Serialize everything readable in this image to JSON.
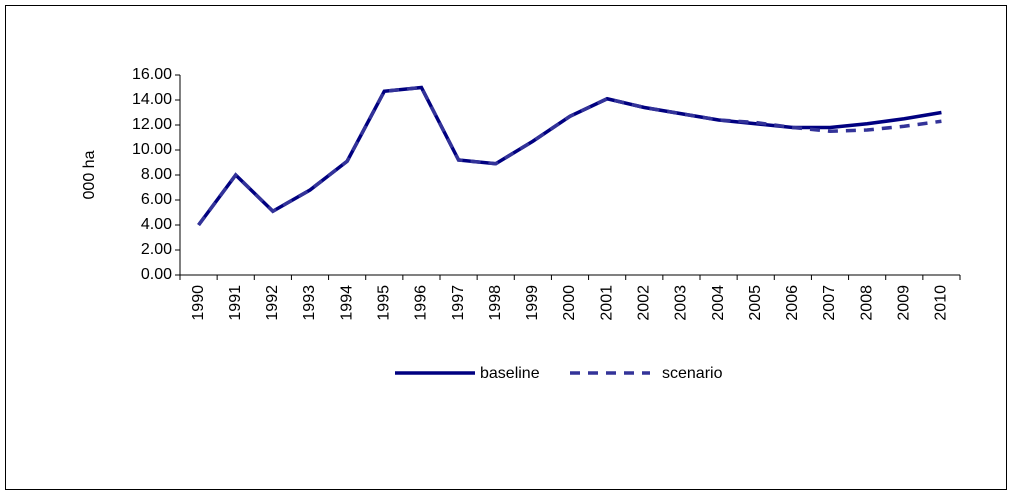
{
  "chart_data": {
    "type": "line",
    "y_label": "000 ha",
    "categories": [
      "1990",
      "1991",
      "1992",
      "1993",
      "1994",
      "1995",
      "1996",
      "1997",
      "1998",
      "1999",
      "2000",
      "2001",
      "2002",
      "2003",
      "2004",
      "2005",
      "2006",
      "2007",
      "2008",
      "2009",
      "2010"
    ],
    "series": [
      {
        "name": "baseline",
        "color": "#000080",
        "dash": false,
        "values": [
          4.0,
          8.0,
          5.1,
          6.8,
          9.1,
          14.7,
          15.0,
          9.2,
          8.9,
          10.7,
          12.7,
          14.1,
          13.4,
          12.9,
          12.4,
          12.1,
          11.8,
          11.8,
          12.1,
          12.5,
          13.0
        ]
      },
      {
        "name": "scenario",
        "color": "#333399",
        "dash": true,
        "values": [
          4.0,
          8.0,
          5.1,
          6.8,
          9.1,
          14.7,
          15.0,
          9.2,
          8.9,
          10.7,
          12.7,
          14.1,
          13.4,
          12.9,
          12.4,
          12.2,
          11.8,
          11.5,
          11.6,
          11.9,
          12.3
        ]
      }
    ],
    "ylim": [
      0,
      16
    ],
    "yticks": [
      {
        "value": 0,
        "label": "0.00"
      },
      {
        "value": 2,
        "label": "2.00"
      },
      {
        "value": 4,
        "label": "4.00"
      },
      {
        "value": 6,
        "label": "6.00"
      },
      {
        "value": 8,
        "label": "8.00"
      },
      {
        "value": 10,
        "label": "10.00"
      },
      {
        "value": 12,
        "label": "12.00"
      },
      {
        "value": 14,
        "label": "14.00"
      },
      {
        "value": 16,
        "label": "16.00"
      }
    ]
  }
}
